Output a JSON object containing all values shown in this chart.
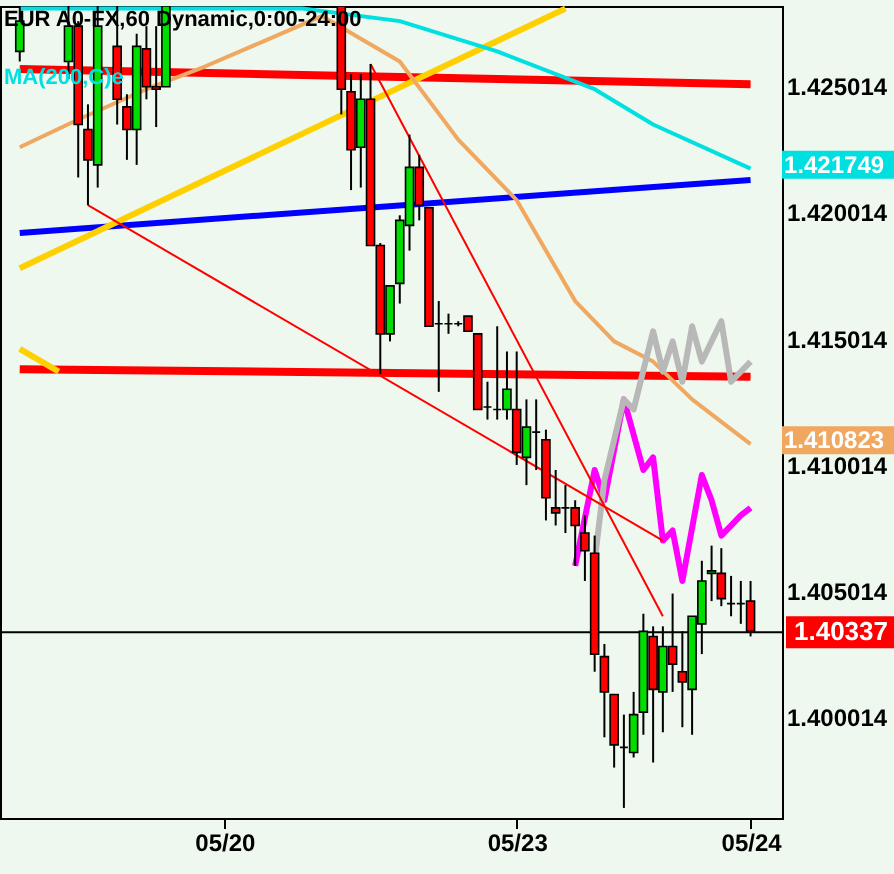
{
  "chart_data": {
    "type": "candlestick",
    "title": "EUR A0-FX,60 Dynamic,0:00-24:00",
    "categories": [
      null,
      null,
      null,
      null,
      null,
      null,
      null,
      null,
      null,
      null,
      null,
      null,
      null,
      null,
      null,
      null,
      null,
      null,
      null,
      null,
      null,
      "05/20",
      null,
      null,
      null,
      null,
      null,
      null,
      null,
      null,
      null,
      null,
      null,
      null,
      null,
      null,
      null,
      null,
      null,
      null,
      null,
      null,
      null,
      null,
      null,
      null,
      null,
      null,
      null,
      null,
      null,
      "05/23",
      null,
      null,
      null,
      null,
      null,
      null,
      null,
      null,
      null,
      null,
      null,
      null,
      null,
      null,
      null,
      null,
      null,
      null,
      null,
      null,
      null,
      null,
      null,
      "05/24"
    ],
    "ohlc": [
      [
        1.4264,
        1.4282,
        1.426,
        1.4276
      ],
      null,
      null,
      null,
      null,
      [
        1.426,
        1.4282,
        1.4253,
        1.4274
      ],
      [
        1.4274,
        1.4276,
        1.4214,
        1.4235
      ],
      [
        1.4233,
        1.4243,
        1.4203,
        1.4221
      ],
      [
        1.4219,
        1.4282,
        1.421,
        1.4274
      ],
      null,
      [
        1.4266,
        1.4282,
        1.4235,
        1.4245
      ],
      [
        1.4242,
        1.4247,
        1.4221,
        1.4233
      ],
      [
        1.4233,
        1.4271,
        1.4219,
        1.4266
      ],
      [
        1.4265,
        1.4274,
        1.4245,
        1.425
      ],
      [
        1.425,
        1.4274,
        1.4234,
        1.4249
      ],
      [
        1.425,
        1.4282,
        1.425,
        1.4282
      ],
      null,
      null,
      null,
      null,
      null,
      null,
      null,
      null,
      null,
      null,
      null,
      null,
      null,
      null,
      null,
      null,
      null,
      [
        1.4282,
        1.4282,
        1.4239,
        1.4249
      ],
      [
        1.4248,
        1.4255,
        1.4209,
        1.4225
      ],
      [
        1.4226,
        1.4255,
        1.421,
        1.4245
      ],
      [
        1.4245,
        1.4259,
        1.4187,
        1.4187
      ],
      [
        1.4187,
        1.4188,
        1.4136,
        1.4152
      ],
      [
        1.4152,
        1.4171,
        1.4149,
        1.4171
      ],
      [
        1.4172,
        1.4199,
        1.4164,
        1.4197
      ],
      [
        1.4195,
        1.4231,
        1.4185,
        1.4218
      ],
      [
        1.4218,
        1.4223,
        1.4197,
        1.4203
      ],
      [
        1.4202,
        1.4202,
        1.4155,
        1.4155
      ],
      [
        1.4156,
        1.4165,
        1.4129,
        1.4156
      ],
      [
        1.4156,
        1.416,
        1.4152,
        1.4156
      ],
      [
        1.4156,
        1.4157,
        1.4155,
        1.4156
      ],
      [
        1.4159,
        1.4159,
        1.4153,
        1.4153
      ],
      [
        1.4152,
        1.4152,
        1.4122,
        1.4122
      ],
      [
        1.4123,
        1.4133,
        1.4118,
        1.4123
      ],
      [
        1.4122,
        1.4155,
        1.4118,
        1.4122
      ],
      [
        1.4122,
        1.4145,
        1.4118,
        1.413
      ],
      [
        1.4122,
        1.4145,
        1.41,
        1.4105
      ],
      [
        1.4103,
        1.4126,
        1.4092,
        1.4115
      ],
      [
        1.4113,
        1.4126,
        1.4098,
        1.4113
      ],
      [
        1.411,
        1.4114,
        1.4078,
        1.4087
      ],
      [
        1.4083,
        1.4098,
        1.4076,
        1.4081
      ],
      [
        1.4083,
        1.4092,
        1.4073,
        1.4083
      ],
      [
        1.4083,
        1.4086,
        1.406,
        1.4076
      ],
      [
        1.4073,
        1.408,
        1.4054,
        1.4066
      ],
      [
        1.4065,
        1.4072,
        1.4018,
        1.4025
      ],
      [
        1.4024,
        1.4029,
        1.3992,
        1.401
      ],
      [
        1.4009,
        1.4009,
        1.398,
        1.3989
      ],
      [
        1.3988,
        1.4001,
        1.3964,
        1.3988
      ],
      [
        1.3986,
        1.401,
        1.3984,
        1.4001
      ],
      [
        1.4002,
        1.4041,
        1.3993,
        1.4034
      ],
      [
        1.4032,
        1.4036,
        1.3982,
        1.4011
      ],
      [
        1.401,
        1.4036,
        1.3994,
        1.4028
      ],
      [
        1.4028,
        1.4049,
        1.401,
        1.4021
      ],
      [
        1.4018,
        1.4034,
        1.3996,
        1.4014
      ],
      [
        1.4011,
        1.404,
        1.3993,
        1.404
      ],
      [
        1.4037,
        1.4062,
        1.4025,
        1.4054
      ],
      [
        1.4057,
        1.4068,
        1.4046,
        1.4058
      ],
      [
        1.4057,
        1.4067,
        1.4044,
        1.4047
      ],
      [
        1.4045,
        1.4056,
        1.404,
        1.4045
      ],
      [
        1.4045,
        1.4054,
        1.4037,
        1.4045
      ],
      [
        1.4046,
        1.4054,
        1.4032,
        1.4034
      ]
    ],
    "series": [
      {
        "type": "line",
        "color": "#ff0000",
        "values": [
          1.4257,
          null,
          null,
          null,
          null,
          null,
          null,
          null,
          null,
          null,
          null,
          null,
          null,
          null,
          null,
          null,
          null,
          null,
          null,
          null,
          null,
          null,
          null,
          null,
          null,
          null,
          null,
          null,
          null,
          null,
          null,
          null,
          null,
          null,
          null,
          null,
          null,
          null,
          null,
          null,
          null,
          null,
          null,
          null,
          null,
          null,
          null,
          null,
          null,
          null,
          null,
          null,
          null,
          null,
          null,
          null,
          null,
          null,
          null,
          null,
          null,
          null,
          null,
          null,
          null,
          null,
          null,
          null,
          null,
          null,
          null,
          null,
          null,
          null,
          null,
          1.4251
        ]
      },
      {
        "type": "line",
        "color": "#ff0000",
        "values": [
          1.4138,
          null,
          null,
          null,
          null,
          null,
          null,
          null,
          null,
          null,
          null,
          null,
          null,
          null,
          null,
          null,
          null,
          null,
          null,
          null,
          null,
          null,
          null,
          null,
          null,
          null,
          null,
          null,
          null,
          null,
          null,
          null,
          null,
          null,
          null,
          null,
          null,
          null,
          null,
          null,
          null,
          null,
          null,
          null,
          null,
          null,
          null,
          null,
          null,
          null,
          null,
          null,
          null,
          null,
          null,
          null,
          null,
          null,
          null,
          null,
          null,
          null,
          null,
          null,
          null,
          null,
          null,
          null,
          null,
          null,
          null,
          null,
          null,
          null,
          null,
          1.4135
        ]
      },
      {
        "type": "line",
        "color": "#0000ff",
        "values": [
          1.4192,
          null,
          null,
          null,
          null,
          null,
          null,
          null,
          null,
          null,
          null,
          null,
          null,
          null,
          null,
          null,
          null,
          null,
          null,
          null,
          null,
          null,
          null,
          null,
          null,
          null,
          null,
          null,
          null,
          null,
          null,
          null,
          null,
          null,
          null,
          null,
          null,
          null,
          null,
          null,
          null,
          null,
          null,
          null,
          null,
          null,
          null,
          null,
          null,
          null,
          null,
          null,
          null,
          null,
          null,
          null,
          null,
          null,
          null,
          null,
          null,
          null,
          null,
          null,
          null,
          null,
          null,
          null,
          null,
          null,
          null,
          null,
          null,
          null,
          null,
          1.4213
        ]
      },
      {
        "type": "line",
        "color": "#ffd000",
        "values": [
          1.4178,
          null,
          null,
          null,
          null,
          null,
          null,
          null,
          null,
          null,
          null,
          null,
          null,
          null,
          null,
          null,
          null,
          null,
          null,
          null,
          null,
          null,
          null,
          null,
          null,
          null,
          null,
          null,
          null,
          null,
          null,
          null,
          null,
          null,
          null,
          null,
          null,
          null,
          null,
          null,
          null,
          null,
          null,
          null,
          null,
          null,
          null,
          null,
          null,
          null,
          null,
          null,
          null,
          null,
          null,
          null,
          1.4281,
          null,
          null,
          null,
          null,
          null,
          null,
          null,
          null,
          null,
          null,
          null,
          null,
          null,
          null,
          null,
          null,
          null,
          null,
          null
        ]
      },
      {
        "type": "line",
        "color": "#ffd000",
        "values": [
          1.4146,
          null,
          null,
          null,
          1.4137,
          null,
          null,
          null,
          null,
          null,
          null,
          null,
          null,
          null,
          null,
          null,
          null,
          null,
          null,
          null,
          null,
          null,
          null,
          null,
          null,
          null,
          null,
          null,
          null,
          null,
          null,
          null,
          null,
          null,
          null,
          null,
          null,
          null,
          null,
          null,
          null,
          null,
          null,
          null,
          null,
          null,
          null,
          null,
          null,
          null,
          null,
          null,
          null,
          null,
          null,
          null,
          null,
          null,
          null,
          null,
          null,
          null,
          null,
          null,
          null,
          null,
          null,
          null,
          null,
          null,
          null,
          null,
          null,
          null,
          null,
          null
        ]
      },
      {
        "type": "line",
        "name": "MA(200,C)e",
        "color": "#00e0e0",
        "values": [
          1.4281,
          null,
          null,
          null,
          null,
          null,
          null,
          null,
          null,
          null,
          null,
          null,
          null,
          null,
          null,
          null,
          null,
          null,
          null,
          null,
          null,
          null,
          null,
          null,
          null,
          null,
          null,
          null,
          null,
          1.4281,
          null,
          null,
          null,
          null,
          null,
          null,
          null,
          null,
          null,
          1.4276,
          null,
          null,
          null,
          null,
          null,
          null,
          null,
          null,
          null,
          1.4264,
          null,
          null,
          null,
          null,
          null,
          null,
          null,
          null,
          null,
          1.4249,
          null,
          null,
          null,
          null,
          null,
          1.4235,
          null,
          null,
          null,
          null,
          null,
          null,
          null,
          null,
          null,
          1.421749
        ],
        "value_labels": [
          null,
          null,
          null,
          null,
          null,
          null,
          null,
          null,
          null,
          null,
          null,
          null,
          null,
          null,
          null,
          null,
          null,
          null,
          null,
          null,
          null,
          null,
          null,
          null,
          null,
          null,
          null,
          null,
          null,
          null,
          null,
          null,
          null,
          null,
          null,
          null,
          null,
          null,
          null,
          null,
          null,
          null,
          null,
          null,
          null,
          null,
          null,
          null,
          null,
          null,
          null,
          null,
          null,
          null,
          null,
          null,
          null,
          null,
          null,
          null,
          null,
          null,
          null,
          null,
          null,
          null,
          null,
          null,
          null,
          null,
          null,
          null,
          null,
          null,
          null,
          "1.421749"
        ]
      },
      {
        "type": "line",
        "color": "#f0a860",
        "values": [
          1.4226,
          null,
          null,
          null,
          null,
          null,
          1.4237,
          null,
          null,
          null,
          null,
          null,
          null,
          1.4249,
          null,
          null,
          null,
          null,
          null,
          1.4258,
          null,
          null,
          null,
          null,
          null,
          1.4268,
          null,
          null,
          null,
          null,
          null,
          1.4278,
          null,
          null,
          null,
          null,
          null,
          null,
          null,
          1.426,
          null,
          null,
          null,
          null,
          null,
          1.4229,
          null,
          null,
          null,
          null,
          null,
          1.4205,
          null,
          null,
          null,
          null,
          null,
          1.4165,
          null,
          null,
          null,
          1.4149,
          null,
          null,
          null,
          1.4141,
          null,
          null,
          null,
          1.4126,
          null,
          null,
          null,
          null,
          null,
          1.410823
        ],
        "value_labels": [
          null,
          null,
          null,
          null,
          null,
          null,
          null,
          null,
          null,
          null,
          null,
          null,
          null,
          null,
          null,
          null,
          null,
          null,
          null,
          null,
          null,
          null,
          null,
          null,
          null,
          null,
          null,
          null,
          null,
          null,
          null,
          null,
          null,
          null,
          null,
          null,
          null,
          null,
          null,
          null,
          null,
          null,
          null,
          null,
          null,
          null,
          null,
          null,
          null,
          null,
          null,
          null,
          null,
          null,
          null,
          null,
          null,
          null,
          null,
          null,
          null,
          null,
          null,
          null,
          null,
          null,
          null,
          null,
          null,
          null,
          null,
          null,
          null,
          null,
          null,
          "1.410823"
        ]
      },
      {
        "type": "line",
        "color": "#ff00ff",
        "values": [
          null,
          null,
          null,
          null,
          null,
          null,
          null,
          null,
          null,
          null,
          null,
          null,
          null,
          null,
          null,
          null,
          null,
          null,
          null,
          null,
          null,
          null,
          null,
          null,
          null,
          null,
          null,
          null,
          null,
          null,
          null,
          null,
          null,
          null,
          null,
          null,
          null,
          null,
          null,
          null,
          null,
          null,
          null,
          null,
          null,
          null,
          null,
          null,
          null,
          null,
          null,
          null,
          null,
          null,
          null,
          null,
          null,
          1.406,
          null,
          1.4098,
          1.4086,
          null,
          1.4126,
          null,
          1.4098,
          1.4103,
          1.407,
          1.4074,
          1.4054,
          null,
          1.4096,
          1.4086,
          1.4072,
          null,
          1.408,
          1.4083
        ]
      },
      {
        "type": "line",
        "color": "#b8b8b8",
        "values": [
          null,
          null,
          null,
          null,
          null,
          null,
          null,
          null,
          null,
          null,
          null,
          null,
          null,
          null,
          null,
          null,
          null,
          null,
          null,
          null,
          null,
          null,
          null,
          null,
          null,
          null,
          null,
          null,
          null,
          null,
          null,
          null,
          null,
          null,
          null,
          null,
          null,
          null,
          null,
          null,
          null,
          null,
          null,
          null,
          null,
          null,
          null,
          null,
          null,
          null,
          null,
          null,
          null,
          null,
          null,
          null,
          null,
          null,
          null,
          1.4062,
          1.4094,
          null,
          1.4126,
          1.4122,
          null,
          1.4153,
          1.4137,
          1.4149,
          1.4133,
          1.4155,
          1.4141,
          1.4149,
          1.4157,
          1.4133,
          null,
          1.4141
        ]
      },
      {
        "type": "line",
        "color": "#ff0000",
        "values": [
          null,
          null,
          null,
          null,
          null,
          null,
          null,
          1.4203,
          null,
          null,
          null,
          null,
          null,
          null,
          null,
          null,
          null,
          null,
          null,
          null,
          null,
          null,
          null,
          null,
          null,
          null,
          null,
          null,
          null,
          null,
          null,
          null,
          null,
          null,
          null,
          null,
          null,
          null,
          null,
          null,
          null,
          null,
          null,
          null,
          null,
          null,
          null,
          null,
          null,
          null,
          null,
          null,
          null,
          null,
          null,
          null,
          null,
          null,
          null,
          null,
          null,
          null,
          null,
          null,
          null,
          null,
          1.407,
          null,
          null,
          null,
          null,
          null,
          null,
          null,
          null,
          null
        ]
      },
      {
        "type": "line",
        "color": "#ff0000",
        "values": [
          null,
          null,
          null,
          null,
          null,
          null,
          null,
          null,
          null,
          null,
          null,
          null,
          null,
          null,
          null,
          null,
          null,
          null,
          null,
          null,
          null,
          null,
          null,
          null,
          null,
          null,
          null,
          null,
          null,
          null,
          null,
          null,
          null,
          null,
          null,
          null,
          1.4259,
          null,
          null,
          null,
          null,
          null,
          null,
          null,
          null,
          null,
          null,
          null,
          null,
          null,
          null,
          null,
          null,
          null,
          null,
          null,
          null,
          null,
          null,
          null,
          null,
          null,
          null,
          null,
          null,
          null,
          1.404,
          null,
          null,
          null,
          null,
          null,
          null,
          null,
          null,
          null
        ]
      }
    ],
    "ylim": [
      1.396,
      1.4282
    ],
    "yticks": [
      1.400014,
      1.405014,
      1.410014,
      1.415014,
      1.420014,
      1.425014
    ],
    "ref_lines": [
      {
        "axis": "y",
        "value": 1.40337,
        "label": "1.40337",
        "color": "#000000"
      }
    ],
    "grid": false
  }
}
